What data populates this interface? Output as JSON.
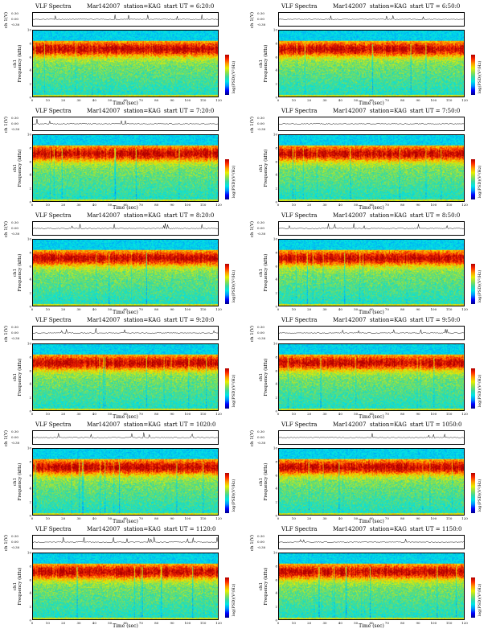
{
  "page": {
    "background": "#ffffff"
  },
  "panel_text": {
    "title": "VLF Spectra",
    "date": "Mar142007",
    "station": "station=KAG",
    "start_prefix": "start  UT =",
    "ch_label": "ch 1(V)",
    "ch_ticks": [
      "0.30",
      "0.00",
      "-0.30"
    ],
    "ylabel_top": "ch1",
    "ylabel": "Frequency (kHz)",
    "xlabel": "Time  (sec)",
    "cbar_label": "log(PSD)(V²/Hz)",
    "cbar_end_ticks": [
      "-",
      "-"
    ]
  },
  "colors": {
    "colormap": [
      "#00008b",
      "#0000ff",
      "#0090ff",
      "#00e5e5",
      "#38d8a0",
      "#8ee04a",
      "#e8ee00",
      "#ff9a00",
      "#ff2a00",
      "#b00000"
    ],
    "band_top": "#2fb3ff",
    "trace": "#000000"
  },
  "chart_data": {
    "type": "heatmap",
    "layout": "6 rows x 2 columns of spectrogram panels",
    "xaxis": {
      "label": "Time  (sec)",
      "range": [
        0,
        120
      ],
      "ticks": [
        0,
        10,
        20,
        30,
        40,
        50,
        60,
        70,
        80,
        90,
        100,
        110,
        120
      ]
    },
    "yaxis": {
      "label": "Frequency (kHz)",
      "range": [
        0,
        10
      ],
      "ticks": [
        0,
        2,
        4,
        6,
        8,
        10
      ]
    },
    "ch_axis": {
      "label": "ch 1(V)",
      "range": [
        -0.3,
        0.3
      ],
      "ticks": [
        "0.30",
        "0.00",
        "-0.30"
      ]
    },
    "colorbar": {
      "label": "log(PSD)(V²/Hz)"
    },
    "common": {
      "title": "VLF Spectra",
      "date": "Mar142007",
      "station": "KAG"
    },
    "panels": [
      {
        "start_ut": "6:20:0"
      },
      {
        "start_ut": "6:50:0"
      },
      {
        "start_ut": "7:20:0"
      },
      {
        "start_ut": "7:50:0"
      },
      {
        "start_ut": "8:20:0"
      },
      {
        "start_ut": "8:50:0"
      },
      {
        "start_ut": "9:20:0"
      },
      {
        "start_ut": "9:50:0"
      },
      {
        "start_ut": "1020:0"
      },
      {
        "start_ut": "1050:0"
      },
      {
        "start_ut": "1120:0"
      },
      {
        "start_ut": "1150:0"
      }
    ]
  }
}
